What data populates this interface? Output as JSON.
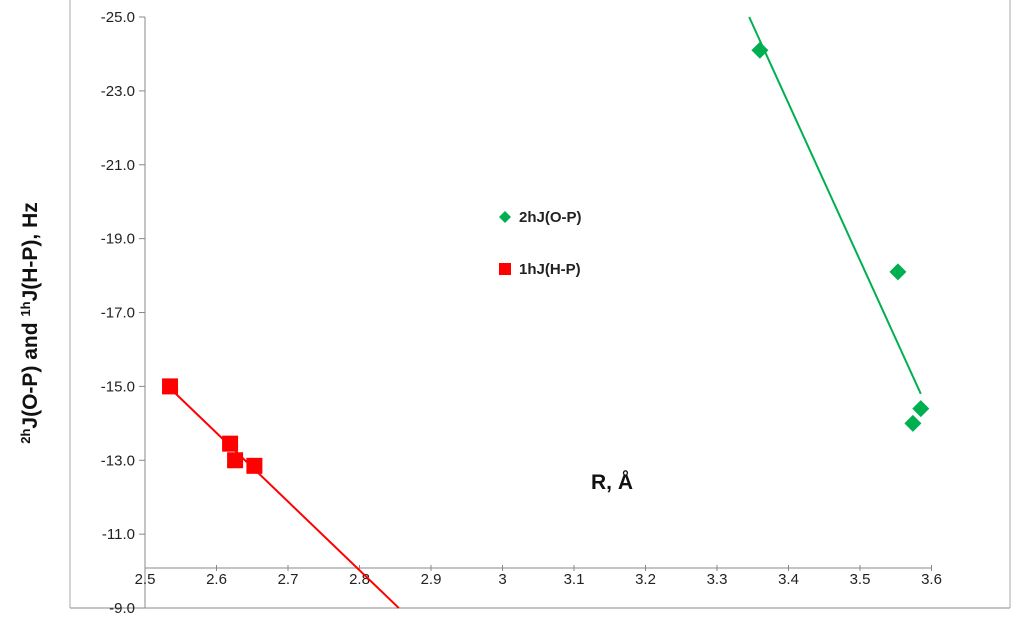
{
  "chart_data": {
    "type": "scatter",
    "xlabel": "R, Å",
    "ylabel": "J(O-P) and J(H-P), Hz",
    "ylabel_parts": {
      "sup1": "2h",
      "part1": "J(O-P) and ",
      "sup2": "1h",
      "part2": "J(H-P), Hz"
    },
    "xlim": [
      2.5,
      3.6
    ],
    "ylim": [
      -9.0,
      -25.0
    ],
    "y_reversed": true,
    "x_ticks": [
      "2.5",
      "2.6",
      "2.7",
      "2.8",
      "2.9",
      "3",
      "3.1",
      "3.2",
      "3.3",
      "3.4",
      "3.5",
      "3.6"
    ],
    "y_ticks": [
      "-25.0",
      "-23.0",
      "-21.0",
      "-19.0",
      "-17.0",
      "-15.0",
      "-13.0",
      "-11.0",
      "-9.0"
    ],
    "grid": false,
    "legend_position": "center",
    "series": [
      {
        "name": "2hJ(O-P)",
        "color": "#00b050",
        "marker": "diamond",
        "points": [
          [
            3.36,
            -24.1
          ],
          [
            3.553,
            -18.1
          ],
          [
            3.574,
            -14.0
          ],
          [
            3.585,
            -14.4
          ]
        ],
        "trendline": [
          [
            3.345,
            -25.0
          ],
          [
            3.585,
            -14.8
          ]
        ]
      },
      {
        "name": "1hJ(H-P)",
        "color": "#ff0000",
        "marker": "square",
        "points": [
          [
            2.535,
            -15.0
          ],
          [
            2.619,
            -13.45
          ],
          [
            2.626,
            -13.0
          ],
          [
            2.653,
            -12.85
          ]
        ],
        "trendline": [
          [
            2.535,
            -14.95
          ],
          [
            2.855,
            -9.0
          ]
        ]
      }
    ]
  }
}
